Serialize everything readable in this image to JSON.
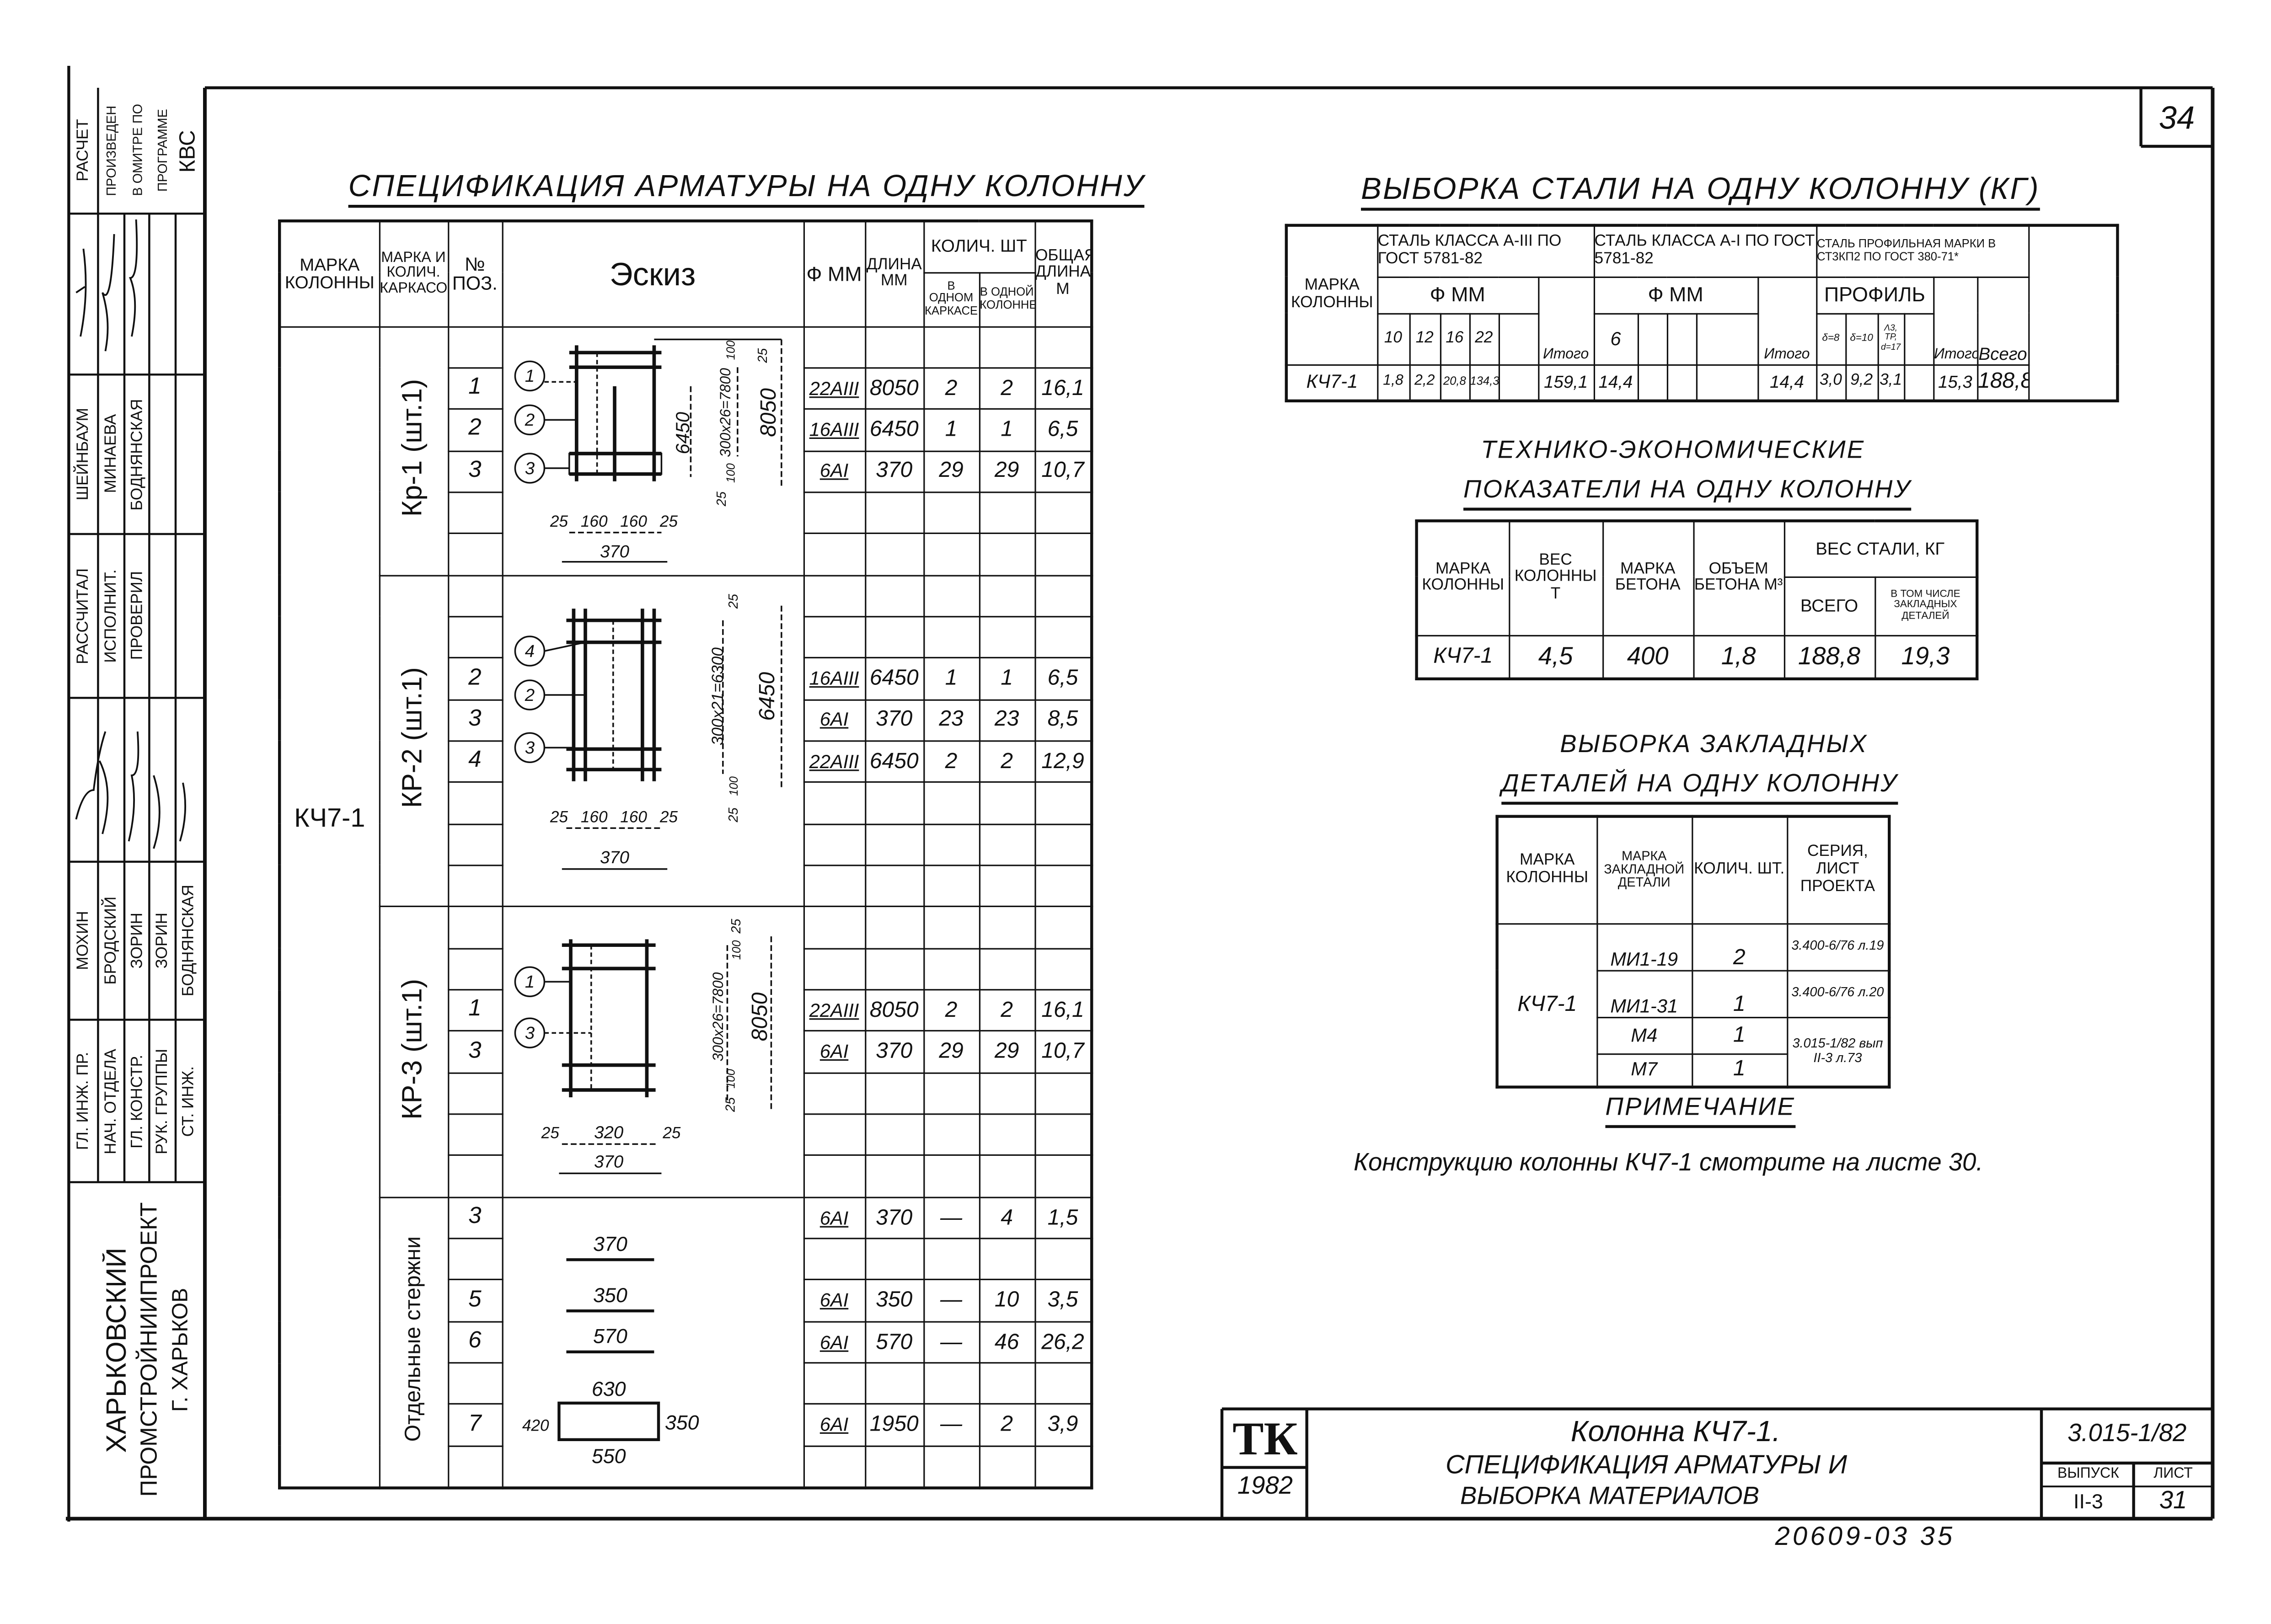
{
  "sheet_number_top": "34",
  "stamp": {
    "calc_note": [
      "Расчет",
      "произведен",
      "в Омитре по",
      "программе",
      "КВС"
    ],
    "names_top": [
      "Шейнбаум",
      "Минаева",
      "Боднянская"
    ],
    "roles_top": [
      "Рассчитал",
      "Исполнит.",
      "Проверил"
    ],
    "names_bottom": [
      "Мохин",
      "Бродский",
      "Зорин",
      "Зорин",
      "Боднянская"
    ],
    "roles_bottom": [
      "Гл. инж. пр.",
      "Нач. отдела",
      "Гл. констр.",
      "Рук. группы",
      "Ст. инж."
    ],
    "organization": [
      "Харьковский",
      "Промстройниипроект",
      "г. Харьков"
    ]
  },
  "spec": {
    "title": "Спецификация арматуры на одну колонну",
    "headers": {
      "column_mark": "Марка колонны",
      "cage_mark": "Марка и колич. каркасов",
      "pos": "№ поз.",
      "sketch": "Эскиз",
      "diam": "ф мм",
      "length": "Длина мм",
      "qty": "Колич. шт",
      "qty_cage": "в одном каркасе",
      "qty_column": "в одной колонне",
      "total_length": "Общая длина м"
    },
    "column_mark": "КЧ7-1",
    "groups": [
      {
        "label": "Кр-1 (шт.1)",
        "rows": [
          {
            "pos": "1",
            "diam": "22AIII",
            "length": "8050",
            "qty_cage": "2",
            "qty_column": "2",
            "total": "16,1"
          },
          {
            "pos": "2",
            "diam": "16AIII",
            "length": "6450",
            "qty_cage": "1",
            "qty_column": "1",
            "total": "6,5"
          },
          {
            "pos": "3",
            "diam": "6AI",
            "length": "370",
            "qty_cage": "29",
            "qty_column": "29",
            "total": "10,7"
          }
        ]
      },
      {
        "label": "КР-2 (шт.1)",
        "rows": [
          {
            "pos": "2",
            "diam": "16AIII",
            "length": "6450",
            "qty_cage": "1",
            "qty_column": "1",
            "total": "6,5"
          },
          {
            "pos": "3",
            "diam": "6AI",
            "length": "370",
            "qty_cage": "23",
            "qty_column": "23",
            "total": "8,5"
          },
          {
            "pos": "4",
            "diam": "22AIII",
            "length": "6450",
            "qty_cage": "2",
            "qty_column": "2",
            "total": "12,9"
          }
        ]
      },
      {
        "label": "КР-3 (шт.1)",
        "rows": [
          {
            "pos": "1",
            "diam": "22AIII",
            "length": "8050",
            "qty_cage": "2",
            "qty_column": "2",
            "total": "16,1"
          },
          {
            "pos": "3",
            "diam": "6AI",
            "length": "370",
            "qty_cage": "29",
            "qty_column": "29",
            "total": "10,7"
          }
        ]
      },
      {
        "label": "Отдельные стержни",
        "rows": [
          {
            "pos": "3",
            "diam": "6AI",
            "length": "370",
            "qty_cage": "—",
            "qty_column": "4",
            "total": "1,5"
          },
          {
            "pos": "5",
            "diam": "6AI",
            "length": "350",
            "qty_cage": "—",
            "qty_column": "10",
            "total": "3,5"
          },
          {
            "pos": "6",
            "diam": "6AI",
            "length": "570",
            "qty_cage": "—",
            "qty_column": "46",
            "total": "26,2"
          },
          {
            "pos": "7",
            "diam": "6AI",
            "length": "1950",
            "qty_cage": "—",
            "qty_column": "2",
            "total": "3,9"
          }
        ]
      }
    ],
    "sketches": {
      "kr1": {
        "circles": [
          "1",
          "2",
          "3"
        ],
        "d_inner": "6450",
        "d_pitch": "300x26=7800",
        "d_total": "8050",
        "d_top": "25",
        "d_100a": "100",
        "d_100b": "100",
        "d_bot": "25",
        "widths": [
          "25",
          "160",
          "160",
          "25"
        ],
        "width_total": "370"
      },
      "kr2": {
        "circles": [
          "4",
          "2",
          "3"
        ],
        "d_pitch": "300x21=6300",
        "d_total": "6450",
        "d_top": "25",
        "d_100": "100",
        "d_bot": "25",
        "widths": [
          "25",
          "160",
          "160",
          "25"
        ],
        "width_total": "370"
      },
      "kr3": {
        "circles": [
          "1",
          "3"
        ],
        "d_pitch": "300x26=7800",
        "d_total": "8050",
        "d_top": "25",
        "d_100a": "100",
        "d_100b": "100",
        "d_bot": "25",
        "widths": [
          "25",
          "320",
          "25"
        ],
        "width_total": "370"
      },
      "bars": {
        "b3": "370",
        "b5": "350",
        "b6": "570",
        "stirrup_top": "630",
        "stirrup_left": "420",
        "stirrup_right": "350",
        "stirrup_bottom": "550"
      }
    }
  },
  "steel": {
    "title": "Выборка стали на одну колонну (кг)",
    "h_mark": "Марка колонны",
    "h_group1": "Сталь класса A-III по ГОСТ 5781-82",
    "h_group2": "Сталь класса A-I по ГОСТ 5781-82",
    "h_group3": "Сталь профильная марки В Ст3кп2 по ГОСТ 380-71*",
    "h_diam": "ф мм",
    "h_profile": "профиль",
    "h_total": "Итого",
    "h_grand": "Всего",
    "diam1": [
      "10",
      "12",
      "16",
      "22",
      ""
    ],
    "diam2": [
      "6",
      "",
      "",
      ""
    ],
    "profiles": [
      "δ=8",
      "δ=10",
      "Λ3, ТР, d=17",
      ""
    ],
    "row": {
      "mark": "КЧ7-1",
      "group1": [
        "1,8",
        "2,2",
        "20,8",
        "134,3",
        ""
      ],
      "group1_total": "159,1",
      "group2": [
        "14,4",
        "",
        "",
        ""
      ],
      "group2_total": "14,4",
      "group3": [
        "3,0",
        "9,2",
        "3,1",
        ""
      ],
      "group3_total": "15,3",
      "grand_total": "188,8"
    }
  },
  "tech": {
    "title_line1": "Технико-экономические",
    "title_line2": "показатели на одну колонну",
    "h_mark": "Марка колонны",
    "h_weight": "Вес колонны т",
    "h_concrete": "Марка бетона",
    "h_volume": "Объем бетона м³",
    "h_steel": "Вес стали, кг",
    "h_steel_total": "Всего",
    "h_steel_embedded": "в том числе закладных деталей",
    "row": {
      "mark": "КЧ7-1",
      "weight": "4,5",
      "concrete": "400",
      "volume": "1,8",
      "steel_total": "188,8",
      "steel_embedded": "19,3"
    }
  },
  "embedded": {
    "title_line1": "Выборка закладных",
    "title_line2": "деталей на одну колонну",
    "h_mark": "Марка колонны",
    "h_detail": "Марка закладной детали",
    "h_qty": "Колич. шт.",
    "h_series": "Серия, лист проекта",
    "column_mark": "КЧ7-1",
    "rows": [
      {
        "detail": "МИ1-19",
        "qty": "2",
        "series": "3.400-6/76 л.19"
      },
      {
        "detail": "МИ1-31",
        "qty": "1",
        "series": "3.400-6/76 л.20"
      },
      {
        "detail": "М4",
        "qty": "1",
        "series": "3.015-1/82 вып II-3 л.73"
      },
      {
        "detail": "М7",
        "qty": "1"
      }
    ]
  },
  "note": {
    "title": "Примечание",
    "text": "Конструкцию колонны КЧ7-1 смотрите на листе 30."
  },
  "title_block": {
    "logo": "ТК",
    "year": "1982",
    "title_line1": "Колонна КЧ7-1.",
    "title_line2": "Спецификация арматуры и",
    "title_line3": "выборка материалов",
    "series": "3.015-1/82",
    "issue_label": "Выпуск",
    "issue": "II-3",
    "sheet_label": "Лист",
    "sheet": "31"
  },
  "archive_number": "20609-03 35"
}
